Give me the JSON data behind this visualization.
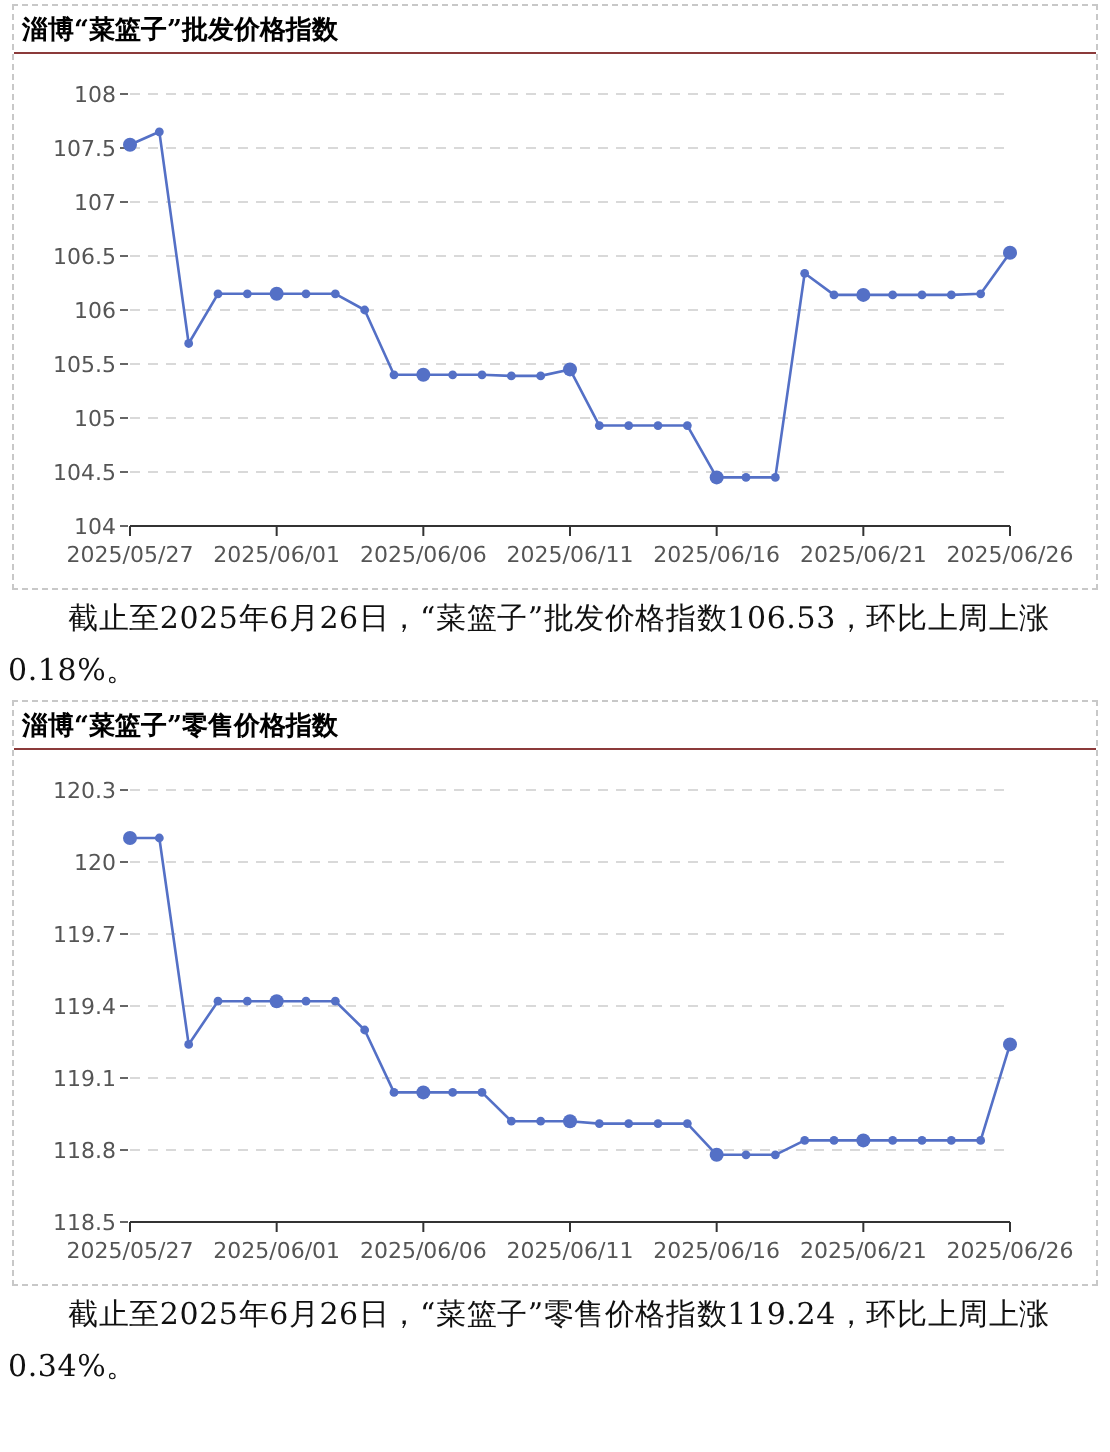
{
  "chart_data": [
    {
      "type": "line",
      "title": "淄博“菜篮子”批发价格指数",
      "marker": "circle",
      "line_style": "solid",
      "grid": "y",
      "x": [
        "2025-05-27",
        "2025-05-28",
        "2025-05-29",
        "2025-05-30",
        "2025-05-31",
        "2025-06-01",
        "2025-06-02",
        "2025-06-03",
        "2025-06-04",
        "2025-06-05",
        "2025-06-06",
        "2025-06-07",
        "2025-06-08",
        "2025-06-09",
        "2025-06-10",
        "2025-06-11",
        "2025-06-12",
        "2025-06-13",
        "2025-06-14",
        "2025-06-15",
        "2025-06-16",
        "2025-06-17",
        "2025-06-18",
        "2025-06-19",
        "2025-06-20",
        "2025-06-21",
        "2025-06-22",
        "2025-06-23",
        "2025-06-24",
        "2025-06-25",
        "2025-06-26"
      ],
      "series": [
        {
          "color": "#5470c6",
          "values": [
            107.53,
            107.65,
            105.69,
            106.15,
            106.15,
            106.15,
            106.15,
            106.15,
            106.0,
            105.4,
            105.4,
            105.4,
            105.4,
            105.39,
            105.39,
            105.45,
            104.93,
            104.93,
            104.93,
            104.93,
            104.45,
            104.45,
            104.45,
            106.34,
            106.14,
            106.14,
            106.14,
            106.14,
            106.14,
            106.15,
            106.53
          ]
        }
      ],
      "xlim": [
        "2025-05-27",
        "2025-06-26"
      ],
      "xticks": [
        {
          "value": "2025-05-27",
          "label": "2025/05/27"
        },
        {
          "value": "2025-06-01",
          "label": "2025/06/01"
        },
        {
          "value": "2025-06-06",
          "label": "2025/06/06"
        },
        {
          "value": "2025-06-11",
          "label": "2025/06/11"
        },
        {
          "value": "2025-06-16",
          "label": "2025/06/16"
        },
        {
          "value": "2025-06-21",
          "label": "2025/06/21"
        },
        {
          "value": "2025-06-26",
          "label": "2025/06/26"
        }
      ],
      "ylim": [
        104,
        108
      ],
      "yticks": [
        104,
        104.5,
        105,
        105.5,
        106,
        106.5,
        107,
        107.5,
        108
      ],
      "annotations": [
        "截止至2025年6月26日，“菜篮子”批发价格指数106.53，环比上周上涨0.18%。"
      ]
    },
    {
      "type": "line",
      "title": "淄博“菜篮子”零售价格指数",
      "marker": "circle",
      "line_style": "solid",
      "grid": "y",
      "x": [
        "2025-05-27",
        "2025-05-28",
        "2025-05-29",
        "2025-05-30",
        "2025-05-31",
        "2025-06-01",
        "2025-06-02",
        "2025-06-03",
        "2025-06-04",
        "2025-06-05",
        "2025-06-06",
        "2025-06-07",
        "2025-06-08",
        "2025-06-09",
        "2025-06-10",
        "2025-06-11",
        "2025-06-12",
        "2025-06-13",
        "2025-06-14",
        "2025-06-15",
        "2025-06-16",
        "2025-06-17",
        "2025-06-18",
        "2025-06-19",
        "2025-06-20",
        "2025-06-21",
        "2025-06-22",
        "2025-06-23",
        "2025-06-24",
        "2025-06-25",
        "2025-06-26"
      ],
      "series": [
        {
          "color": "#5470c6",
          "values": [
            120.1,
            120.1,
            119.24,
            119.42,
            119.42,
            119.42,
            119.42,
            119.42,
            119.3,
            119.04,
            119.04,
            119.04,
            119.04,
            118.92,
            118.92,
            118.92,
            118.91,
            118.91,
            118.91,
            118.91,
            118.78,
            118.78,
            118.78,
            118.84,
            118.84,
            118.84,
            118.84,
            118.84,
            118.84,
            118.84,
            119.24
          ]
        }
      ],
      "xlim": [
        "2025-05-27",
        "2025-06-26"
      ],
      "xticks": [
        {
          "value": "2025-05-27",
          "label": "2025/05/27"
        },
        {
          "value": "2025-06-01",
          "label": "2025/06/01"
        },
        {
          "value": "2025-06-06",
          "label": "2025/06/06"
        },
        {
          "value": "2025-06-11",
          "label": "2025/06/11"
        },
        {
          "value": "2025-06-16",
          "label": "2025/06/16"
        },
        {
          "value": "2025-06-21",
          "label": "2025/06/21"
        },
        {
          "value": "2025-06-26",
          "label": "2025/06/26"
        }
      ],
      "ylim": [
        118.5,
        120.3
      ],
      "yticks": [
        118.5,
        118.8,
        119.1,
        119.4,
        119.7,
        120,
        120.3
      ],
      "annotations": [
        "截止至2025年6月26日，“菜篮子”零售价格指数119.24，环比上周上涨0.34%。"
      ]
    }
  ]
}
